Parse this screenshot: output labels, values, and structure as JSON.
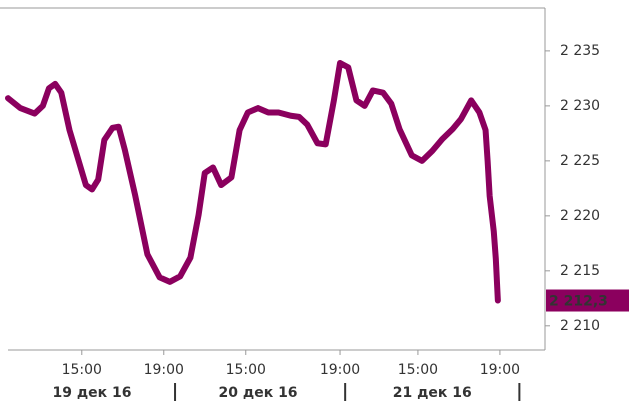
{
  "chart_data": {
    "type": "line",
    "x": [
      0,
      0.6,
      1.3,
      1.7,
      2.0,
      2.3,
      2.6,
      3.0,
      3.8,
      4.1,
      4.4,
      4.7,
      5.1,
      5.4,
      5.7,
      6.2,
      6.8,
      7.4,
      7.9,
      8.4,
      8.9,
      9.3,
      9.6,
      10.0,
      10.4,
      10.9,
      11.3,
      11.7,
      12.2,
      12.7,
      13.2,
      13.8,
      14.2,
      14.6,
      15.1,
      15.5,
      15.9,
      16.2,
      16.6,
      17.0,
      17.4,
      17.8,
      18.3,
      18.7,
      19.1,
      19.7,
      20.2,
      20.7,
      21.2,
      21.7,
      22.1,
      22.6,
      23.0,
      23.3,
      23.4,
      23.5,
      23.7,
      23.8,
      23.9
    ],
    "series": [
      {
        "color": "#8b005e",
        "values": [
          2230.7,
          2229.8,
          2229.3,
          2230,
          2231.6,
          2232,
          2231.2,
          2227.8,
          2222.8,
          2222.4,
          2223.3,
          2226.9,
          2228,
          2228.1,
          2226,
          2221.9,
          2216.5,
          2214.4,
          2214.0,
          2214.5,
          2216.2,
          2220.1,
          2223.9,
          2224.4,
          2222.8,
          2223.5,
          2227.8,
          2229.4,
          2229.8,
          2229.4,
          2229.4,
          2229.1,
          2229.0,
          2228.3,
          2226.6,
          2226.5,
          2230.5,
          2233.9,
          2233.5,
          2230.5,
          2230,
          2231.4,
          2231.2,
          2230.2,
          2227.9,
          2225.5,
          2225.0,
          2225.9,
          2227,
          2227.9,
          2228.8,
          2230.5,
          2229.4,
          2227.8,
          2225,
          2221.8,
          2218.6,
          2216.1,
          2212.3
        ]
      }
    ],
    "last_label": {
      "value": 2212.3,
      "label": "2 212,3"
    },
    "xlim": [
      0,
      26.2
    ],
    "xticks": [
      {
        "value": 3.6,
        "label": "15:00"
      },
      {
        "value": 7.6,
        "label": "19:00"
      },
      {
        "value": 11.6,
        "label": "15:00"
      },
      {
        "value": 16.2,
        "label": "19:00"
      },
      {
        "value": 20.0,
        "label": "15:00"
      },
      {
        "value": 24.0,
        "label": "19:00"
      }
    ],
    "day_labels": [
      {
        "value": 4.1,
        "label": "19 дек 16"
      },
      {
        "value": 12.2,
        "label": "20 дек 16"
      },
      {
        "value": 20.7,
        "label": "21 дек 16"
      }
    ],
    "ylim": [
      2207.8,
      2238.9
    ],
    "yticks": [
      {
        "value": 2210,
        "label": "2 210"
      },
      {
        "value": 2215,
        "label": "2 215"
      },
      {
        "value": 2220,
        "label": "2 220"
      },
      {
        "value": 2225,
        "label": "2 225"
      },
      {
        "value": 2230,
        "label": "2 230"
      },
      {
        "value": 2235,
        "label": "2 235"
      }
    ]
  }
}
